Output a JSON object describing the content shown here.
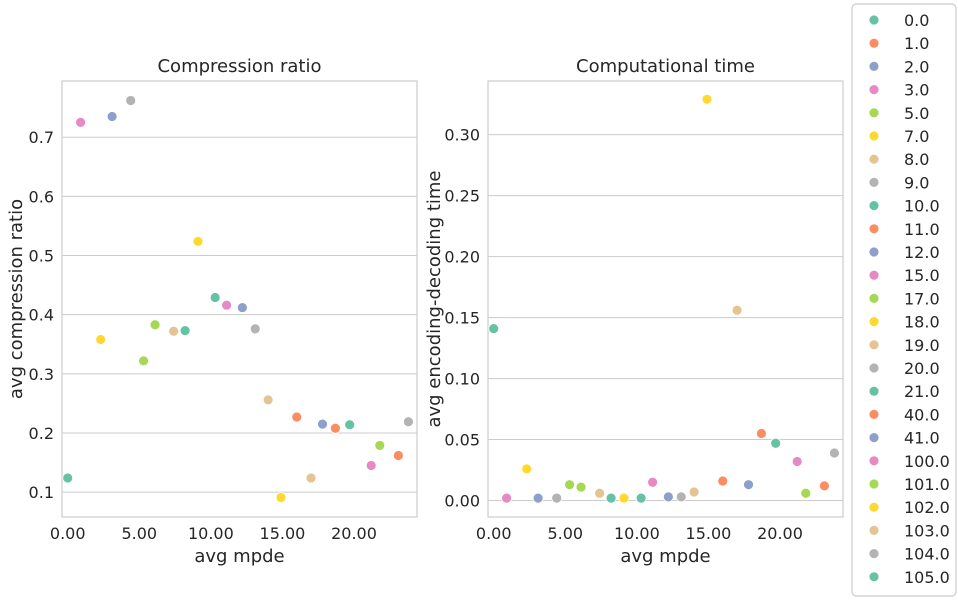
{
  "chart_data": [
    {
      "type": "scatter",
      "title": "Compression ratio",
      "xlabel": "avg mpde",
      "ylabel": "avg compression ratio",
      "xlim": [
        -0.4,
        24.4
      ],
      "ylim": [
        0.058,
        0.795
      ],
      "xticks": [
        0,
        5,
        10,
        15,
        20
      ],
      "xtick_labels": [
        "0.00",
        "5.00",
        "10.00",
        "15.00",
        "20.00"
      ],
      "yticks": [
        0.1,
        0.2,
        0.3,
        0.4,
        0.5,
        0.6,
        0.7
      ],
      "ytick_labels": [
        "0.1",
        "0.2",
        "0.3",
        "0.4",
        "0.5",
        "0.6",
        "0.7"
      ],
      "grid": "horizontal",
      "points": [
        {
          "label": "0.0",
          "x": 0.0,
          "y": 0.124
        },
        {
          "label": "1.0",
          "x": 16.0,
          "y": 0.227
        },
        {
          "label": "2.0",
          "x": 3.1,
          "y": 0.735
        },
        {
          "label": "3.0",
          "x": 0.9,
          "y": 0.725
        },
        {
          "label": "5.0",
          "x": 5.3,
          "y": 0.322
        },
        {
          "label": "7.0",
          "x": 2.3,
          "y": 0.358
        },
        {
          "label": "8.0",
          "x": 7.4,
          "y": 0.372
        },
        {
          "label": "9.0",
          "x": 4.4,
          "y": 0.762
        },
        {
          "label": "10.0",
          "x": 8.2,
          "y": 0.373
        },
        {
          "label": "11.0",
          "x": 18.7,
          "y": 0.208
        },
        {
          "label": "12.0",
          "x": 12.2,
          "y": 0.412
        },
        {
          "label": "15.0",
          "x": 11.1,
          "y": 0.416
        },
        {
          "label": "17.0",
          "x": 6.1,
          "y": 0.383
        },
        {
          "label": "18.0",
          "x": 9.1,
          "y": 0.524
        },
        {
          "label": "19.0",
          "x": 14.0,
          "y": 0.256
        },
        {
          "label": "20.0",
          "x": 13.1,
          "y": 0.376
        },
        {
          "label": "21.0",
          "x": 10.3,
          "y": 0.429
        },
        {
          "label": "40.0",
          "x": 23.1,
          "y": 0.162
        },
        {
          "label": "41.0",
          "x": 17.8,
          "y": 0.215
        },
        {
          "label": "100.0",
          "x": 21.2,
          "y": 0.145
        },
        {
          "label": "101.0",
          "x": 21.8,
          "y": 0.179
        },
        {
          "label": "102.0",
          "x": 14.9,
          "y": 0.091
        },
        {
          "label": "103.0",
          "x": 17.0,
          "y": 0.124
        },
        {
          "label": "104.0",
          "x": 23.8,
          "y": 0.219
        },
        {
          "label": "105.0",
          "x": 19.7,
          "y": 0.214
        }
      ]
    },
    {
      "type": "scatter",
      "title": "Computational time",
      "xlabel": "avg mpde",
      "ylabel": "avg encoding-decoding time",
      "xlim": [
        -0.4,
        24.4
      ],
      "ylim": [
        -0.0135,
        0.344
      ],
      "xticks": [
        0,
        5,
        10,
        15,
        20
      ],
      "xtick_labels": [
        "0.00",
        "5.00",
        "10.00",
        "15.00",
        "20.00"
      ],
      "yticks": [
        0,
        0.05,
        0.1,
        0.15,
        0.2,
        0.25,
        0.3
      ],
      "ytick_labels": [
        "0.00",
        "0.05",
        "0.10",
        "0.15",
        "0.20",
        "0.25",
        "0.30"
      ],
      "grid": "horizontal",
      "points": [
        {
          "label": "0.0",
          "x": 0.0,
          "y": 0.141
        },
        {
          "label": "1.0",
          "x": 16.0,
          "y": 0.016
        },
        {
          "label": "2.0",
          "x": 3.1,
          "y": 0.002
        },
        {
          "label": "3.0",
          "x": 0.9,
          "y": 0.002
        },
        {
          "label": "5.0",
          "x": 5.3,
          "y": 0.013
        },
        {
          "label": "7.0",
          "x": 2.3,
          "y": 0.026
        },
        {
          "label": "8.0",
          "x": 7.4,
          "y": 0.006
        },
        {
          "label": "9.0",
          "x": 4.4,
          "y": 0.002
        },
        {
          "label": "10.0",
          "x": 8.2,
          "y": 0.002
        },
        {
          "label": "11.0",
          "x": 18.7,
          "y": 0.055
        },
        {
          "label": "12.0",
          "x": 12.2,
          "y": 0.003
        },
        {
          "label": "15.0",
          "x": 11.1,
          "y": 0.015
        },
        {
          "label": "17.0",
          "x": 6.1,
          "y": 0.011
        },
        {
          "label": "18.0",
          "x": 9.1,
          "y": 0.002
        },
        {
          "label": "19.0",
          "x": 14.0,
          "y": 0.007
        },
        {
          "label": "20.0",
          "x": 13.1,
          "y": 0.003
        },
        {
          "label": "21.0",
          "x": 10.3,
          "y": 0.002
        },
        {
          "label": "40.0",
          "x": 23.1,
          "y": 0.012
        },
        {
          "label": "41.0",
          "x": 17.8,
          "y": 0.013
        },
        {
          "label": "100.0",
          "x": 21.2,
          "y": 0.032
        },
        {
          "label": "101.0",
          "x": 21.8,
          "y": 0.006
        },
        {
          "label": "102.0",
          "x": 14.9,
          "y": 0.329
        },
        {
          "label": "103.0",
          "x": 17.0,
          "y": 0.156
        },
        {
          "label": "104.0",
          "x": 23.8,
          "y": 0.039
        },
        {
          "label": "105.0",
          "x": 19.7,
          "y": 0.047
        }
      ]
    }
  ],
  "legend": {
    "placement": "right",
    "entries": [
      {
        "label": "0.0",
        "color": "#66c2a5"
      },
      {
        "label": "1.0",
        "color": "#fc8d62"
      },
      {
        "label": "2.0",
        "color": "#8da0cb"
      },
      {
        "label": "3.0",
        "color": "#e78ac3"
      },
      {
        "label": "5.0",
        "color": "#a6d854"
      },
      {
        "label": "7.0",
        "color": "#ffd92f"
      },
      {
        "label": "8.0",
        "color": "#e5c494"
      },
      {
        "label": "9.0",
        "color": "#b3b3b3"
      },
      {
        "label": "10.0",
        "color": "#66c2a5"
      },
      {
        "label": "11.0",
        "color": "#fc8d62"
      },
      {
        "label": "12.0",
        "color": "#8da0cb"
      },
      {
        "label": "15.0",
        "color": "#e78ac3"
      },
      {
        "label": "17.0",
        "color": "#a6d854"
      },
      {
        "label": "18.0",
        "color": "#ffd92f"
      },
      {
        "label": "19.0",
        "color": "#e5c494"
      },
      {
        "label": "20.0",
        "color": "#b3b3b3"
      },
      {
        "label": "21.0",
        "color": "#66c2a5"
      },
      {
        "label": "40.0",
        "color": "#fc8d62"
      },
      {
        "label": "41.0",
        "color": "#8da0cb"
      },
      {
        "label": "100.0",
        "color": "#e78ac3"
      },
      {
        "label": "101.0",
        "color": "#a6d854"
      },
      {
        "label": "102.0",
        "color": "#ffd92f"
      },
      {
        "label": "103.0",
        "color": "#e5c494"
      },
      {
        "label": "104.0",
        "color": "#b3b3b3"
      },
      {
        "label": "105.0",
        "color": "#66c2a5"
      }
    ]
  },
  "colors": {
    "grid": "#cccccc",
    "frame": "#cccccc",
    "text": "#262626"
  }
}
